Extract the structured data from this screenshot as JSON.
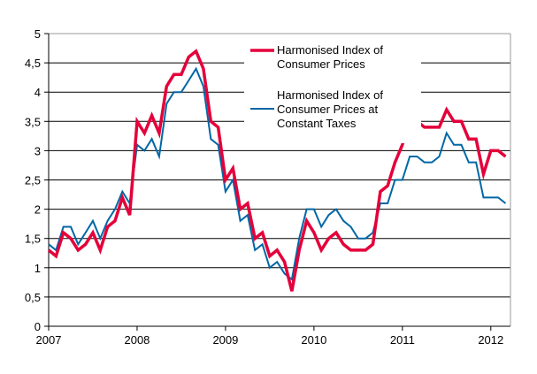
{
  "chart_data": {
    "type": "line",
    "title": "",
    "xlabel": "",
    "ylabel": "",
    "ylim": [
      0,
      5
    ],
    "y_ticks": [
      "0",
      "0,5",
      "1",
      "1,5",
      "2",
      "2,5",
      "3",
      "3,5",
      "4",
      "4,5",
      "5"
    ],
    "x_ticks": [
      "2007",
      "2008",
      "2009",
      "2010",
      "2011",
      "2012"
    ],
    "x_start": "2007-01",
    "x_end": "2012-03",
    "frequency": "monthly",
    "grid": true,
    "legend_position": "top-right",
    "series": [
      {
        "name": "Harmonised Index of Consumer Prices",
        "color": "#e4003a",
        "values": [
          1.3,
          1.2,
          1.6,
          1.5,
          1.3,
          1.4,
          1.6,
          1.3,
          1.7,
          1.8,
          2.2,
          1.9,
          3.5,
          3.3,
          3.6,
          3.3,
          4.1,
          4.3,
          4.3,
          4.6,
          4.7,
          4.4,
          3.5,
          3.4,
          2.5,
          2.7,
          2.0,
          2.1,
          1.5,
          1.6,
          1.2,
          1.3,
          1.1,
          0.6,
          1.3,
          1.8,
          1.6,
          1.3,
          1.5,
          1.6,
          1.4,
          1.3,
          1.3,
          1.3,
          1.4,
          2.3,
          2.4,
          2.8,
          3.1,
          3.5,
          3.5,
          3.4,
          3.4,
          3.4,
          3.7,
          3.5,
          3.5,
          3.2,
          3.2,
          2.6,
          3.0,
          3.0,
          2.9
        ]
      },
      {
        "name": "Harmonised Index of Consumer Prices at Constant Taxes",
        "color": "#0067a5",
        "values": [
          1.4,
          1.3,
          1.7,
          1.7,
          1.4,
          1.6,
          1.8,
          1.5,
          1.8,
          2.0,
          2.3,
          2.1,
          3.1,
          3.0,
          3.2,
          2.9,
          3.8,
          4.0,
          4.0,
          4.2,
          4.4,
          4.1,
          3.2,
          3.1,
          2.3,
          2.5,
          1.8,
          1.9,
          1.3,
          1.4,
          1.0,
          1.1,
          0.9,
          0.8,
          1.5,
          2.0,
          2.0,
          1.7,
          1.9,
          2.0,
          1.8,
          1.7,
          1.5,
          1.5,
          1.6,
          2.1,
          2.1,
          2.5,
          2.5,
          2.9,
          2.9,
          2.8,
          2.8,
          2.9,
          3.3,
          3.1,
          3.1,
          2.8,
          2.8,
          2.2,
          2.2,
          2.2,
          2.1
        ]
      }
    ],
    "legend": {
      "hicp_line1": "Harmonised Index of",
      "hicp_line2": "Consumer Prices",
      "ct_line1": "Harmonised Index of",
      "ct_line2": "Consumer Prices at",
      "ct_line3": "Constant Taxes"
    }
  }
}
